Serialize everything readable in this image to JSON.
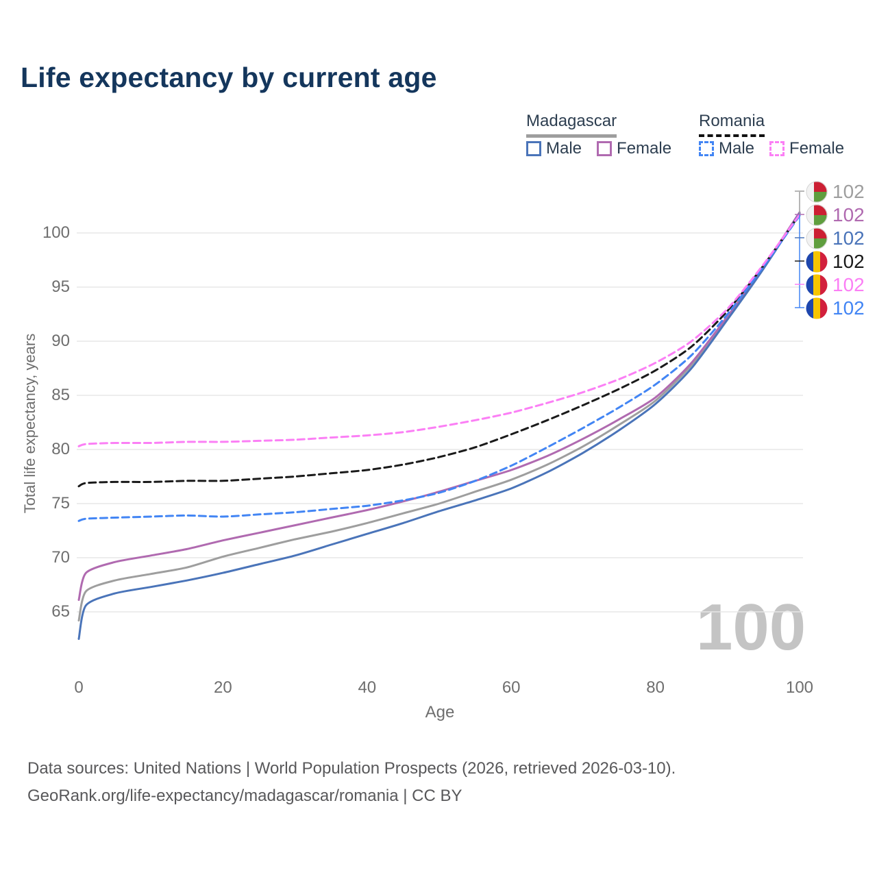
{
  "header": {
    "title": "Life expectancy by current age"
  },
  "legend": {
    "madagascar": {
      "title": "Madagascar",
      "male_label": "Male",
      "female_label": "Female"
    },
    "romania": {
      "title": "Romania",
      "male_label": "Male",
      "female_label": "Female"
    }
  },
  "watermark": "100",
  "end_labels": [
    {
      "icon": "madagascar-flag-icon",
      "country": "Madagascar",
      "series": "Both sexes",
      "value": "102",
      "color": "#9e9e9e"
    },
    {
      "icon": "madagascar-flag-icon",
      "country": "Madagascar",
      "series": "Female",
      "value": "102",
      "color": "#b06ab0"
    },
    {
      "icon": "madagascar-flag-icon",
      "country": "Madagascar",
      "series": "Male",
      "value": "102",
      "color": "#4a74b9"
    },
    {
      "icon": "romania-flag-icon",
      "country": "Romania",
      "series": "Both sexes",
      "value": "102",
      "color": "#1a1a1a"
    },
    {
      "icon": "romania-flag-icon",
      "country": "Romania",
      "series": "Female",
      "value": "102",
      "color": "#fb7ff5"
    },
    {
      "icon": "romania-flag-icon",
      "country": "Romania",
      "series": "Male",
      "value": "102",
      "color": "#4285f4"
    }
  ],
  "chart_data": {
    "type": "line",
    "title": "Life expectancy by current age",
    "xlabel": "Age",
    "ylabel": "Total life expectancy, years",
    "x_ticks": [
      0,
      20,
      40,
      60,
      80,
      100
    ],
    "y_ticks": [
      65,
      70,
      75,
      80,
      85,
      90,
      95,
      100
    ],
    "xlim": [
      0,
      100
    ],
    "ylim": [
      61.5,
      103
    ],
    "grid": "horizontal-only",
    "legend_position": "top-right",
    "x": [
      0,
      1,
      5,
      10,
      15,
      20,
      25,
      30,
      35,
      40,
      45,
      50,
      55,
      60,
      65,
      70,
      75,
      80,
      85,
      90,
      95,
      100
    ],
    "series": [
      {
        "name": "Madagascar Both sexes",
        "color": "#9e9e9e",
        "dash": false,
        "values": [
          64.2,
          66.9,
          67.9,
          68.5,
          69.1,
          70.1,
          70.9,
          71.7,
          72.4,
          73.2,
          74.1,
          75.0,
          76.1,
          77.2,
          78.6,
          80.3,
          82.3,
          84.5,
          87.8,
          92.2,
          96.8,
          101.9
        ]
      },
      {
        "name": "Madagascar Female",
        "color": "#b06ab0",
        "dash": false,
        "values": [
          66.1,
          68.6,
          69.6,
          70.2,
          70.8,
          71.6,
          72.3,
          73.0,
          73.7,
          74.4,
          75.2,
          76.1,
          77.1,
          78.1,
          79.4,
          81.0,
          82.8,
          84.8,
          88.0,
          92.3,
          96.9,
          101.9
        ]
      },
      {
        "name": "Madagascar Male",
        "color": "#4a74b9",
        "dash": false,
        "values": [
          62.5,
          65.6,
          66.7,
          67.3,
          67.9,
          68.6,
          69.4,
          70.2,
          71.2,
          72.2,
          73.2,
          74.3,
          75.3,
          76.4,
          77.9,
          79.7,
          81.8,
          84.2,
          87.5,
          92.0,
          96.7,
          101.8
        ]
      },
      {
        "name": "Romania Both sexes",
        "color": "#1a1a1a",
        "dash": true,
        "values": [
          76.6,
          76.9,
          77.0,
          77.0,
          77.1,
          77.1,
          77.3,
          77.5,
          77.8,
          78.1,
          78.6,
          79.3,
          80.2,
          81.4,
          82.7,
          84.1,
          85.6,
          87.3,
          89.5,
          92.8,
          97.0,
          101.7
        ]
      },
      {
        "name": "Romania Male",
        "color": "#4285f4",
        "dash": true,
        "values": [
          73.4,
          73.6,
          73.7,
          73.8,
          73.9,
          73.8,
          74.0,
          74.2,
          74.5,
          74.8,
          75.3,
          76.0,
          77.1,
          78.5,
          80.2,
          82.0,
          83.9,
          86.0,
          88.7,
          92.5,
          96.9,
          101.6
        ]
      },
      {
        "name": "Romania Female",
        "color": "#fb7ff5",
        "dash": true,
        "values": [
          80.3,
          80.5,
          80.6,
          80.6,
          80.7,
          80.7,
          80.8,
          80.9,
          81.1,
          81.3,
          81.6,
          82.1,
          82.7,
          83.4,
          84.3,
          85.3,
          86.5,
          88.0,
          90.0,
          93.0,
          97.1,
          101.7
        ]
      }
    ],
    "end_value_label": "102"
  },
  "footer": {
    "line1": "Data sources: United Nations | World Population Prospects (2026, retrieved 2026-03-10).",
    "line2": "GeoRank.org/life-expectancy/madagascar/romania | CC BY"
  }
}
